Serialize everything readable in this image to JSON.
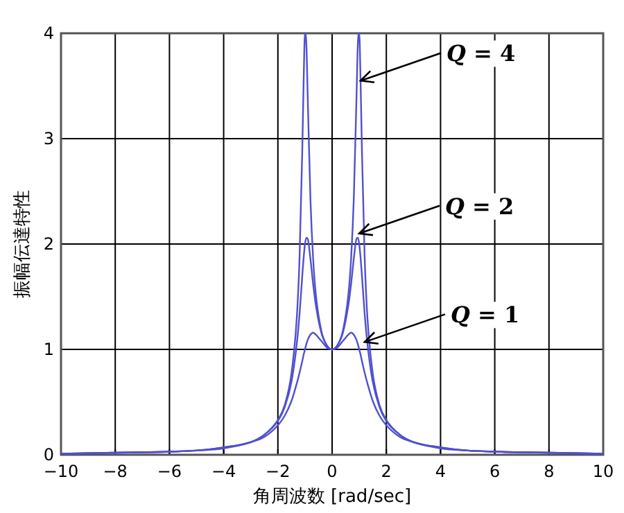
{
  "chart_data": {
    "type": "line",
    "xlabel": "角周波数 [rad/sec]",
    "ylabel": "振幅伝達特性",
    "x": [
      -10,
      -8,
      -6,
      -5,
      -4,
      -3,
      -2.5,
      -2,
      -1.75,
      -1.5,
      -1.3,
      -1.2,
      -1.1,
      -1.05,
      -1,
      -0.95,
      -0.9,
      -0.8,
      -0.7,
      -0.6,
      -0.4,
      -0.2,
      0,
      0.2,
      0.4,
      0.6,
      0.7,
      0.8,
      0.9,
      0.95,
      1,
      1.05,
      1.1,
      1.2,
      1.3,
      1.5,
      1.75,
      2,
      2.5,
      3,
      4,
      5,
      6,
      8,
      10
    ],
    "series": [
      {
        "color": "#5050d0",
        "values": [
          0.01,
          0.02,
          0.03,
          0.04,
          0.06,
          0.12,
          0.17,
          0.28,
          0.37,
          0.51,
          0.68,
          0.78,
          0.89,
          0.95,
          1,
          1.05,
          1.09,
          1.14,
          1.16,
          1.14,
          1.08,
          1.02,
          1,
          1.02,
          1.08,
          1.14,
          1.16,
          1.14,
          1.09,
          1.05,
          1,
          0.95,
          0.89,
          0.78,
          0.68,
          0.51,
          0.37,
          0.28,
          0.17,
          0.12,
          0.06,
          0.04,
          0.03,
          0.02,
          0.01
        ]
      },
      {
        "color": "#5050d0",
        "values": [
          0.01,
          0.02,
          0.03,
          0.04,
          0.07,
          0.12,
          0.19,
          0.32,
          0.45,
          0.69,
          1.06,
          1.34,
          1.7,
          1.87,
          2,
          2.06,
          2.05,
          1.86,
          1.62,
          1.42,
          1.16,
          1.04,
          1,
          1.04,
          1.16,
          1.42,
          1.62,
          1.86,
          2.05,
          2.06,
          2,
          1.87,
          1.7,
          1.34,
          1.06,
          0.69,
          0.45,
          0.32,
          0.19,
          0.12,
          0.07,
          0.04,
          0.03,
          0.02,
          0.01
        ]
      },
      {
        "color": "#5050d0",
        "values": [
          0.01,
          0.02,
          0.03,
          0.04,
          0.07,
          0.12,
          0.19,
          0.33,
          0.47,
          0.77,
          1.31,
          1.88,
          2.89,
          3.55,
          4,
          3.9,
          3.4,
          2.43,
          1.86,
          1.52,
          1.18,
          1.04,
          1,
          1.04,
          1.18,
          1.52,
          1.86,
          2.43,
          3.4,
          3.9,
          4,
          3.55,
          2.89,
          1.88,
          1.31,
          0.77,
          0.47,
          0.33,
          0.19,
          0.12,
          0.07,
          0.04,
          0.03,
          0.02,
          0.01
        ]
      }
    ],
    "xlim": [
      -10,
      10
    ],
    "xticks": [
      -10,
      -8,
      -6,
      -4,
      -2,
      0,
      2,
      4,
      6,
      8,
      10
    ],
    "ylim": [
      0,
      4
    ],
    "yticks": [
      0,
      1,
      2,
      3,
      4
    ],
    "grid": true,
    "annotations": [
      {
        "text": "*Q* = 4",
        "x": 1.05,
        "y": 3.55
      },
      {
        "text": "*Q* = 2",
        "x": 1.0,
        "y": 2.1
      },
      {
        "text": "*Q* = 1",
        "x": 1.2,
        "y": 1.07
      }
    ]
  }
}
